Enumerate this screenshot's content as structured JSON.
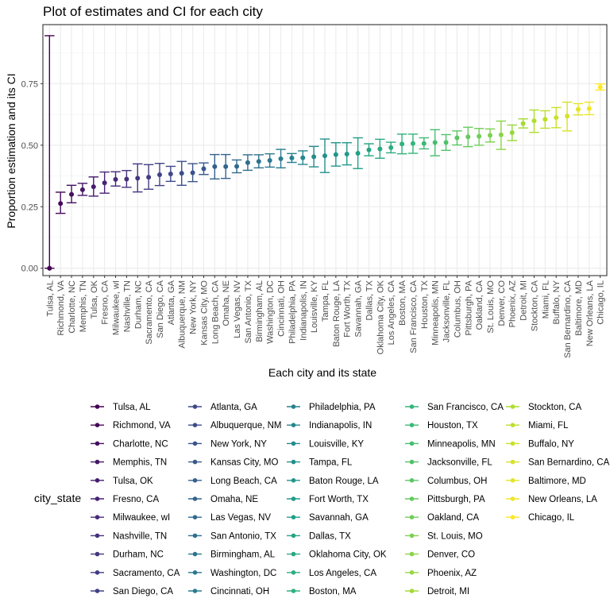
{
  "chart_data": {
    "type": "scatter",
    "title": "Plot of estimates and CI for each city",
    "xlabel": "Each city and its state",
    "ylabel": "Proportion estimation and its CI",
    "ylim": [
      -0.03,
      0.99
    ],
    "yticks": [
      "0.00",
      "0.25",
      "0.50",
      "0.75"
    ],
    "ytick_values": [
      0,
      0.25,
      0.5,
      0.75
    ],
    "grid": true,
    "legend_title": "city_state",
    "legend_placement": "bottom",
    "series_encoding": "color by city_state",
    "colors": {
      "palette_start": "#440154",
      "palette_end": "#fde725",
      "grid": "#ebebeb",
      "panel_border": "#333333"
    },
    "cities": [
      "Tulsa, AL",
      "Richmond, VA",
      "Charlotte, NC",
      "Memphis, TN",
      "Tulsa, OK",
      "Fresno, CA",
      "Milwaukee, wI",
      "Nashville, TN",
      "Durham, NC",
      "Sacramento, CA",
      "San Diego, CA",
      "Atlanta, GA",
      "Albuquerque, NM",
      "New York, NY",
      "Kansas City, MO",
      "Long Beach, CA",
      "Omaha, NE",
      "Las Vegas, NV",
      "San Antonio, TX",
      "Birmingham, AL",
      "Washington, DC",
      "Cincinnati, OH",
      "Philadelphia, PA",
      "Indianapolis, IN",
      "Louisville, KY",
      "Tampa, FL",
      "Baton Rouge, LA",
      "Fort Worth, TX",
      "Savannah, GA",
      "Dallas, TX",
      "Oklahoma City, OK",
      "Los Angeles, CA",
      "Boston, MA",
      "San Francisco, CA",
      "Houston, TX",
      "Minneapolis, MN",
      "Jacksonville, FL",
      "Columbus, OH",
      "Pittsburgh, PA",
      "Oakland, CA",
      "St. Louis, MO",
      "Denver, CO",
      "Phoenix, AZ",
      "Detroit, MI",
      "Stockton, CA",
      "Miami, FL",
      "Buffalo, NY",
      "San Bernardino, CA",
      "Baltimore, MD",
      "New Orleans, LA",
      "Chicago, IL"
    ],
    "estimate": [
      0.0,
      0.263,
      0.3,
      0.319,
      0.331,
      0.347,
      0.361,
      0.362,
      0.366,
      0.37,
      0.38,
      0.383,
      0.386,
      0.388,
      0.404,
      0.413,
      0.413,
      0.414,
      0.429,
      0.434,
      0.438,
      0.445,
      0.448,
      0.449,
      0.453,
      0.457,
      0.462,
      0.464,
      0.467,
      0.481,
      0.485,
      0.49,
      0.505,
      0.507,
      0.507,
      0.511,
      0.511,
      0.53,
      0.534,
      0.536,
      0.54,
      0.542,
      0.551,
      0.588,
      0.599,
      0.605,
      0.612,
      0.618,
      0.646,
      0.649,
      0.736
    ],
    "lower": [
      0.0,
      0.223,
      0.266,
      0.296,
      0.293,
      0.305,
      0.334,
      0.329,
      0.31,
      0.321,
      0.336,
      0.353,
      0.337,
      0.352,
      0.381,
      0.363,
      0.365,
      0.388,
      0.398,
      0.408,
      0.411,
      0.408,
      0.43,
      0.422,
      0.412,
      0.389,
      0.415,
      0.42,
      0.405,
      0.457,
      0.447,
      0.469,
      0.465,
      0.467,
      0.485,
      0.457,
      0.479,
      0.501,
      0.494,
      0.5,
      0.513,
      0.483,
      0.519,
      0.57,
      0.552,
      0.569,
      0.571,
      0.558,
      0.623,
      0.624,
      0.724
    ],
    "upper": [
      0.945,
      0.309,
      0.337,
      0.345,
      0.371,
      0.391,
      0.392,
      0.397,
      0.424,
      0.421,
      0.426,
      0.414,
      0.434,
      0.425,
      0.428,
      0.462,
      0.462,
      0.44,
      0.461,
      0.461,
      0.465,
      0.483,
      0.466,
      0.477,
      0.495,
      0.525,
      0.51,
      0.51,
      0.53,
      0.506,
      0.524,
      0.512,
      0.545,
      0.545,
      0.53,
      0.563,
      0.543,
      0.558,
      0.573,
      0.568,
      0.566,
      0.598,
      0.582,
      0.607,
      0.643,
      0.64,
      0.653,
      0.675,
      0.669,
      0.675,
      0.749
    ]
  }
}
